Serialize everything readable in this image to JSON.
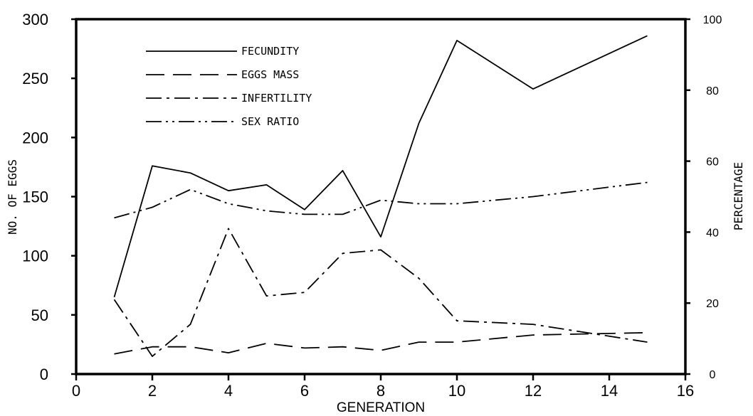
{
  "chart_data": {
    "type": "line",
    "title": "",
    "xlabel": "GENERATION",
    "ylabel_left": "NO. OF EGGS",
    "ylabel_right": "PERCENTAGE",
    "xlim": [
      0,
      16
    ],
    "ylim_left": [
      0,
      300
    ],
    "ylim_right": [
      0,
      100
    ],
    "x_ticks": [
      "0",
      "2",
      "4",
      "6",
      "8",
      "10",
      "12",
      "14",
      "16"
    ],
    "y_left_ticks": [
      "0",
      "50",
      "100",
      "150",
      "200",
      "250",
      "300"
    ],
    "y_right_ticks": [
      "0",
      "20",
      "40",
      "60",
      "80",
      "100"
    ],
    "grid": false,
    "legend_position": "top-left",
    "series": [
      {
        "name": "FECUNDITY",
        "axis": "left",
        "dash": "solid",
        "points": [
          [
            1,
            65
          ],
          [
            2,
            176
          ],
          [
            3,
            170
          ],
          [
            4,
            155
          ],
          [
            5,
            160
          ],
          [
            6,
            139
          ],
          [
            7,
            172
          ],
          [
            8,
            116
          ],
          [
            9,
            212
          ],
          [
            10,
            282
          ],
          [
            12,
            241
          ],
          [
            15,
            286
          ]
        ]
      },
      {
        "name": "EGGS MASS",
        "axis": "left",
        "dash": "dashed",
        "points": [
          [
            1,
            17
          ],
          [
            2,
            23
          ],
          [
            3,
            23
          ],
          [
            4,
            18
          ],
          [
            5,
            26
          ],
          [
            6,
            22
          ],
          [
            7,
            23
          ],
          [
            8,
            20
          ],
          [
            9,
            27
          ],
          [
            10,
            27
          ],
          [
            12,
            33
          ],
          [
            15,
            35
          ]
        ]
      },
      {
        "name": "INFERTILITY",
        "axis": "right",
        "dash": "dashdot",
        "points": [
          [
            1,
            21
          ],
          [
            2,
            5
          ],
          [
            3,
            14
          ],
          [
            4,
            41
          ],
          [
            5,
            22
          ],
          [
            6,
            23
          ],
          [
            7,
            34
          ],
          [
            8,
            35
          ],
          [
            9,
            27
          ],
          [
            10,
            15
          ],
          [
            12,
            14
          ],
          [
            15,
            9
          ]
        ]
      },
      {
        "name": "SEX RATIO",
        "axis": "right",
        "dash": "dashdotdot",
        "points": [
          [
            1,
            44
          ],
          [
            2,
            47
          ],
          [
            3,
            52
          ],
          [
            4,
            48
          ],
          [
            5,
            46
          ],
          [
            6,
            45
          ],
          [
            7,
            45
          ],
          [
            8,
            49
          ],
          [
            9,
            48
          ],
          [
            10,
            48
          ],
          [
            12,
            50
          ],
          [
            15,
            54
          ]
        ]
      }
    ]
  }
}
